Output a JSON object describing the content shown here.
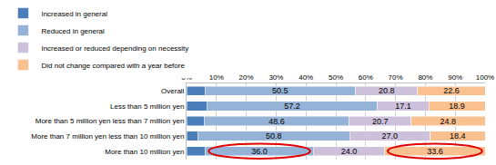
{
  "chart_data": {
    "type": "bar",
    "orientation": "horizontal",
    "stacked": true,
    "grid": true,
    "legend": "top",
    "data_labels": true,
    "categories": [
      "Overall",
      "Less than 5 million yen",
      "More than 5 million yen less than 7 million yen",
      "More than 7 million yen less than 10 million yen",
      "More than 10 million yen"
    ],
    "xlim": [
      0,
      100
    ],
    "xticks": [
      {
        "value": 0,
        "label": "0%"
      },
      {
        "value": 10,
        "label": "10%"
      },
      {
        "value": 20,
        "label": "20%"
      },
      {
        "value": 30,
        "label": "30%"
      },
      {
        "value": 40,
        "label": "40%"
      },
      {
        "value": 50,
        "label": "50%"
      },
      {
        "value": 60,
        "label": "60%"
      },
      {
        "value": 70,
        "label": "70%"
      },
      {
        "value": 80,
        "label": "80%"
      },
      {
        "value": 90,
        "label": "90%"
      },
      {
        "value": 100,
        "label": "100%"
      }
    ],
    "series": [
      {
        "name": "Increased in general",
        "color": "#4a7ebb",
        "data_labels": false,
        "values": [
          6.1,
          6.8,
          5.9,
          3.8,
          6.4
        ]
      },
      {
        "name": "Reduced in general",
        "color": "#95b3d7",
        "data_labels": true,
        "values": [
          50.5,
          57.2,
          48.6,
          50.8,
          36.0
        ],
        "value_labels": [
          "50.5",
          "57.2",
          "48.6",
          "50.8",
          "36.0"
        ]
      },
      {
        "name": "Increased or reduced depending on necessity",
        "color": "#ccc0da",
        "data_labels": true,
        "values": [
          20.8,
          17.1,
          20.7,
          27.0,
          24.0
        ],
        "value_labels": [
          "20.8",
          "17.1",
          "20.7",
          "27.0",
          "24.0"
        ]
      },
      {
        "name": "Did not change compared with a year before",
        "color": "#fac090",
        "data_labels": true,
        "values": [
          22.6,
          18.9,
          24.8,
          18.4,
          33.6
        ],
        "value_labels": [
          "22.6",
          "18.9",
          "24.8",
          "18.4",
          "33.6"
        ]
      }
    ]
  }
}
